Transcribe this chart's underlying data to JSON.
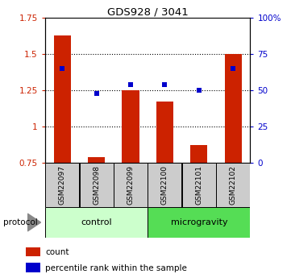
{
  "title": "GDS928 / 3041",
  "samples": [
    "GSM22097",
    "GSM22098",
    "GSM22099",
    "GSM22100",
    "GSM22101",
    "GSM22102"
  ],
  "count_values": [
    1.63,
    0.79,
    1.25,
    1.17,
    0.87,
    1.5
  ],
  "percentile_values": [
    65,
    48,
    54,
    54,
    50,
    65
  ],
  "ylim_left": [
    0.75,
    1.75
  ],
  "ylim_right": [
    0,
    100
  ],
  "yticks_left": [
    0.75,
    1.0,
    1.25,
    1.5,
    1.75
  ],
  "yticks_right": [
    0,
    25,
    50,
    75,
    100
  ],
  "ytick_labels_left": [
    "0.75",
    "1",
    "1.25",
    "1.5",
    "1.75"
  ],
  "ytick_labels_right": [
    "0",
    "25",
    "50",
    "75",
    "100%"
  ],
  "bar_color": "#cc2200",
  "dot_color": "#0000cc",
  "bar_baseline": 0.75,
  "groups": [
    {
      "label": "control",
      "indices": [
        0,
        1,
        2
      ],
      "color": "#ccffcc"
    },
    {
      "label": "microgravity",
      "indices": [
        3,
        4,
        5
      ],
      "color": "#55dd55"
    }
  ],
  "protocol_label": "protocol",
  "legend_items": [
    {
      "label": "count",
      "color": "#cc2200"
    },
    {
      "label": "percentile rank within the sample",
      "color": "#0000cc"
    }
  ],
  "grid_color": "black",
  "axis_color_left": "#cc2200",
  "axis_color_right": "#0000cc",
  "sample_box_color": "#cccccc",
  "fig_width": 3.61,
  "fig_height": 3.45,
  "dpi": 100
}
